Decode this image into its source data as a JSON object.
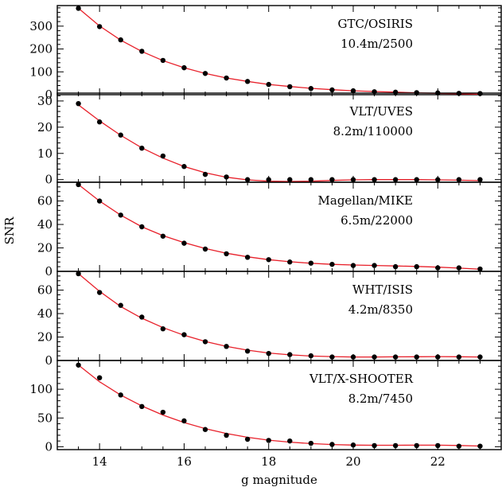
{
  "chart_data": {
    "type": "scatter",
    "xlabel": "g magnitude",
    "ylabel": "SNR",
    "xlim": [
      13,
      23.5
    ],
    "xticks": [
      14,
      16,
      18,
      20,
      22
    ],
    "x": [
      13.5,
      14.0,
      14.5,
      15.0,
      15.5,
      16.0,
      16.5,
      17.0,
      17.5,
      18.0,
      18.5,
      19.0,
      19.5,
      20.0,
      20.5,
      21.0,
      21.5,
      22.0,
      22.5,
      23.0
    ],
    "panels": [
      {
        "label_line1": "GTC/OSIRIS",
        "label_line2": "10.4m/2500",
        "ylim": [
          0,
          390
        ],
        "yticks": [
          0,
          100,
          200,
          300
        ],
        "points": [
          378,
          298,
          240,
          190,
          150,
          118,
          93,
          73,
          58,
          45,
          35,
          27,
          21,
          17,
          13,
          11,
          9,
          8,
          6,
          5
        ],
        "fit": [
          378,
          301,
          239,
          189,
          149,
          118,
          93,
          73,
          58,
          45,
          36,
          28,
          22,
          17,
          14,
          11,
          8,
          6,
          4,
          2
        ]
      },
      {
        "label_line1": "VLT/UVES",
        "label_line2": "8.2m/110000",
        "ylim": [
          -1,
          33
        ],
        "yticks": [
          0,
          10,
          20,
          30
        ],
        "points": [
          29,
          22,
          17,
          12,
          9,
          5,
          2,
          1,
          0,
          0,
          0,
          0,
          0,
          0,
          0,
          0,
          0,
          0,
          0,
          0
        ],
        "fit": [
          28.5,
          22.4,
          16.9,
          12.1,
          8.2,
          5.0,
          2.6,
          0.9,
          -0.1,
          -0.6,
          -0.7,
          -0.6,
          -0.3,
          -0.1,
          0.0,
          0.0,
          0.0,
          -0.1,
          -0.2,
          -0.4
        ]
      },
      {
        "label_line1": "Magellan/MIKE",
        "label_line2": "6.5m/22000",
        "ylim": [
          0,
          76
        ],
        "yticks": [
          0,
          20,
          40,
          60
        ],
        "points": [
          74,
          60,
          48,
          38,
          30,
          24,
          19,
          15,
          12,
          10,
          8,
          7,
          6,
          5,
          5,
          4,
          4,
          3,
          3,
          2
        ],
        "fit": [
          74,
          60,
          48,
          38,
          30.5,
          24.5,
          19.5,
          15.5,
          12.4,
          10.0,
          8.2,
          6.9,
          6.0,
          5.4,
          5.0,
          4.6,
          4.2,
          3.6,
          2.8,
          1.8
        ]
      },
      {
        "label_line1": "WHT/ISIS",
        "label_line2": "4.2m/8350",
        "ylim": [
          0,
          76
        ],
        "yticks": [
          0,
          20,
          40,
          60
        ],
        "points": [
          74,
          58,
          47,
          37,
          27,
          22,
          16,
          12,
          8,
          6,
          5,
          4,
          3,
          3,
          3,
          3,
          3,
          3,
          3,
          3
        ],
        "fit": [
          74,
          59,
          46,
          36,
          28,
          21.5,
          16.2,
          12.0,
          8.8,
          6.4,
          4.8,
          3.8,
          3.3,
          3.0,
          3.0,
          3.1,
          3.2,
          3.3,
          3.2,
          3.0
        ]
      },
      {
        "label_line1": "VLT/X-SHOOTER",
        "label_line2": "8.2m/7450",
        "ylim": [
          -5,
          150
        ],
        "yticks": [
          0,
          50,
          100
        ],
        "points": [
          142,
          120,
          90,
          70,
          60,
          45,
          30,
          20,
          13,
          11,
          10,
          6,
          4,
          3,
          2,
          2,
          2,
          2,
          1,
          1
        ],
        "fit": [
          142,
          113,
          90,
          71,
          55,
          42,
          31.5,
          23,
          16.5,
          11.5,
          8,
          5.5,
          3.8,
          2.9,
          2.6,
          2.6,
          2.8,
          2.8,
          2.2,
          1.2
        ]
      }
    ]
  }
}
